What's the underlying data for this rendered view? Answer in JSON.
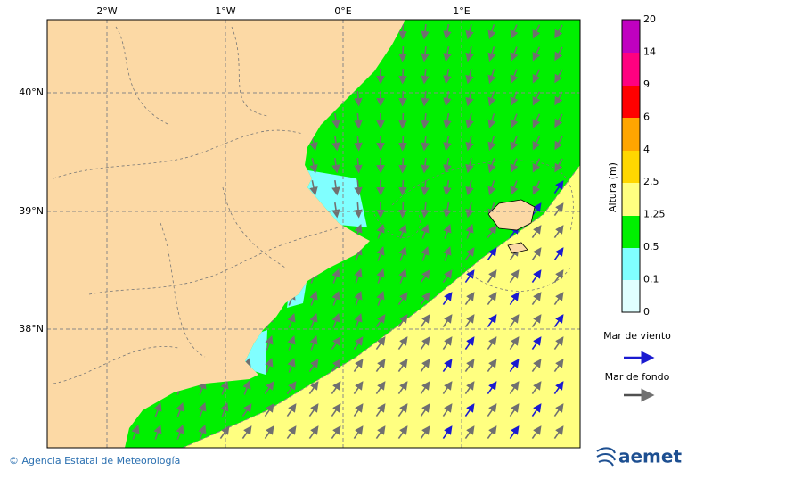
{
  "map": {
    "lon_labels": [
      "2°W",
      "1°W",
      "0°E",
      "1°E"
    ],
    "lat_labels": [
      "40°N",
      "39°N",
      "38°N"
    ],
    "colorbar": {
      "title": "Altura (m)",
      "labels": [
        "20",
        "14",
        "9",
        "6",
        "4",
        "2.5",
        "1.25",
        "0.5",
        "0.1",
        "0"
      ]
    }
  },
  "legend": [
    {
      "label": "Mar de viento"
    },
    {
      "label": "Mar de fondo"
    }
  ],
  "footer": {
    "credit": "© Agencia Estatal de Meteorología",
    "logo": "aemet"
  }
}
